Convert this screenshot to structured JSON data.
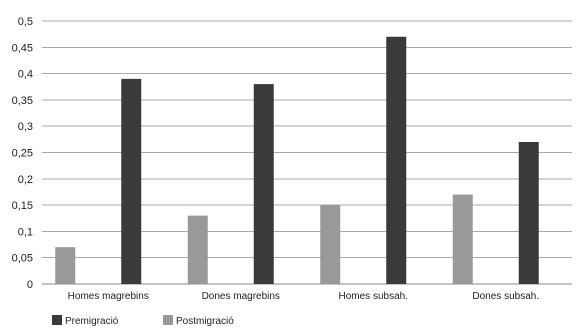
{
  "chart_data": {
    "type": "bar",
    "categories": [
      "Homes magrebins",
      "Dones magrebins",
      "Homes subsah.",
      "Dones subsah."
    ],
    "series": [
      {
        "name": "Postmigració",
        "values": [
          0.07,
          0.13,
          0.15,
          0.17
        ]
      },
      {
        "name": "Premigració",
        "values": [
          0.39,
          0.38,
          0.47,
          0.27
        ]
      }
    ],
    "title": "",
    "xlabel": "",
    "ylabel": "",
    "ylim": [
      0,
      0.5
    ],
    "yticks": [
      0,
      0.05,
      0.1,
      0.15,
      0.2,
      0.25,
      0.3,
      0.35,
      0.4,
      0.45,
      0.5
    ],
    "ytick_labels": [
      "0",
      "0,05",
      "0,1",
      "0,15",
      "0,2",
      "0,25",
      "0,3",
      "0,35",
      "0,4",
      "0,45",
      "0,5"
    ],
    "grid": true,
    "legend": {
      "placement": "bottom-left",
      "items": [
        "Premigració",
        "Postmigració"
      ]
    },
    "colors": {
      "Postmigració": "#999999",
      "Premigració": "#3a3a3a",
      "grid": "#aaaaaa",
      "axis": "#888888"
    }
  }
}
